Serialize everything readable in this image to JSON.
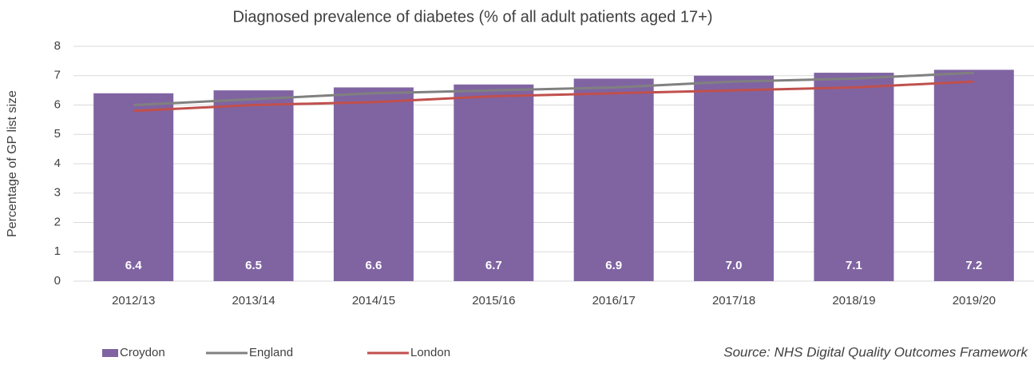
{
  "chart_data": {
    "type": "bar",
    "title": "Diagnosed prevalence of diabetes (% of all adult patients aged 17+)",
    "y_label": "Percentage of GP list size",
    "source": "Source: NHS Digital Quality Outcomes Framework",
    "categories": [
      "2012/13",
      "2013/14",
      "2014/15",
      "2015/16",
      "2016/17",
      "2017/18",
      "2018/19",
      "2019/20"
    ],
    "series": [
      {
        "name": "Croydon",
        "type": "bar",
        "color": "#8064a2",
        "values": [
          6.4,
          6.5,
          6.6,
          6.7,
          6.9,
          7.0,
          7.1,
          7.2
        ],
        "value_labels": [
          "6.4",
          "6.5",
          "6.6",
          "6.7",
          "6.9",
          "7.0",
          "7.1",
          "7.2"
        ]
      },
      {
        "name": "England",
        "type": "line",
        "color": "#808080",
        "values": [
          6.0,
          6.2,
          6.4,
          6.5,
          6.6,
          6.8,
          6.9,
          7.1
        ]
      },
      {
        "name": "London",
        "type": "line",
        "color": "#c0504d",
        "values": [
          5.8,
          6.0,
          6.1,
          6.3,
          6.4,
          6.5,
          6.6,
          6.8
        ]
      }
    ],
    "ylim": [
      0,
      8
    ],
    "yticks": [
      0,
      1,
      2,
      3,
      4,
      5,
      6,
      7,
      8
    ],
    "grid": true,
    "legend": "bottom"
  }
}
